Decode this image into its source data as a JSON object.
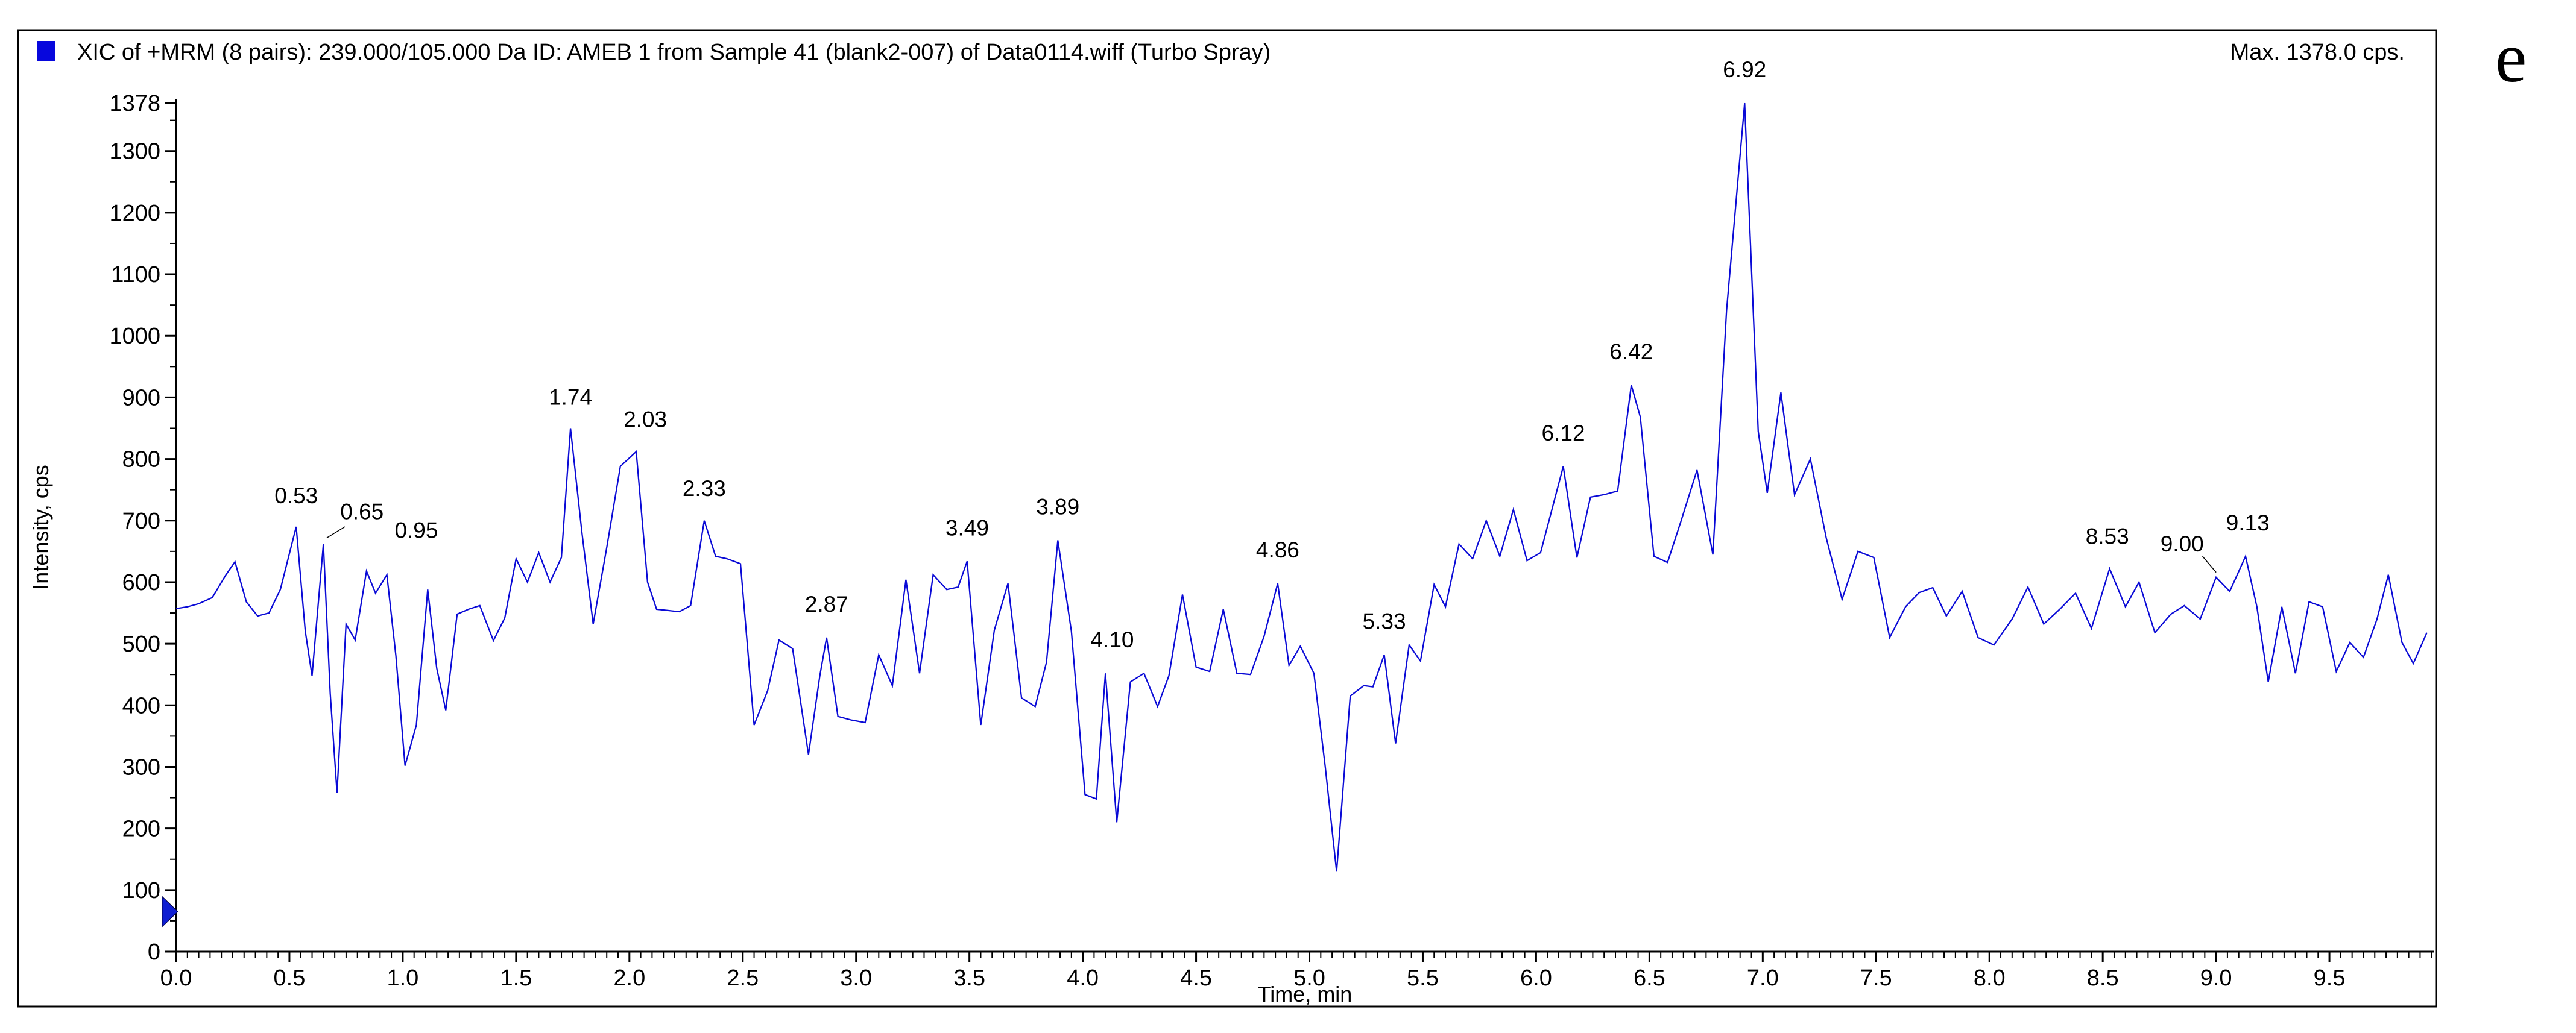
{
  "page": {
    "background": "#ffffff"
  },
  "figure_label": "e",
  "header": {
    "title": "XIC of +MRM (8 pairs): 239.000/105.000 Da ID: AMEB 1 from Sample 41 (blank2-007) of Data0114.wiff (Turbo Spray)",
    "max_label": "Max. 1378.0 cps."
  },
  "legend": {
    "swatch_color": "#0707dd"
  },
  "marker": {
    "name": "file-pointer-triangle",
    "color": "#0f1ed2",
    "cps": 65
  },
  "chart_data": {
    "type": "line",
    "title": "XIC of +MRM (8 pairs): 239.000/105.000 Da ID: AMEB 1 from Sample 41 (blank2-007) of Data0114.wiff (Turbo Spray)",
    "xlabel": "Time, min",
    "ylabel": "Intensity, cps",
    "xlim": [
      0,
      9.96
    ],
    "ylim": [
      0,
      1378
    ],
    "grid": false,
    "legend_position": "top-left",
    "line_color": "#0a0ad6",
    "axis_color": "#000000",
    "x_tick_labels": [
      "0.0",
      "0.5",
      "1.0",
      "1.5",
      "2.0",
      "2.5",
      "3.0",
      "3.5",
      "4.0",
      "4.5",
      "5.0",
      "5.5",
      "6.0",
      "6.5",
      "7.0",
      "7.5",
      "8.0",
      "8.5",
      "9.0",
      "9.5"
    ],
    "x_minor_step": 0.05,
    "y_tick_labels": [
      "1378",
      "1300",
      "1200",
      "1100",
      "1000",
      "900",
      "800",
      "700",
      "600",
      "500",
      "400",
      "300",
      "200",
      "100",
      "0"
    ],
    "y_minor_step": 50,
    "max_cps": 1378.0,
    "series": [
      {
        "name": "XIC 239.000/105.000",
        "points": [
          [
            0.0,
            557
          ],
          [
            0.05,
            560
          ],
          [
            0.1,
            565
          ],
          [
            0.16,
            575
          ],
          [
            0.22,
            612
          ],
          [
            0.26,
            633
          ],
          [
            0.31,
            568
          ],
          [
            0.36,
            545
          ],
          [
            0.41,
            550
          ],
          [
            0.46,
            588
          ],
          [
            0.53,
            690
          ],
          [
            0.57,
            520
          ],
          [
            0.6,
            448
          ],
          [
            0.65,
            662
          ],
          [
            0.68,
            420
          ],
          [
            0.71,
            258
          ],
          [
            0.75,
            532
          ],
          [
            0.79,
            506
          ],
          [
            0.84,
            618
          ],
          [
            0.88,
            582
          ],
          [
            0.93,
            612
          ],
          [
            0.97,
            480
          ],
          [
            1.01,
            302
          ],
          [
            1.06,
            368
          ],
          [
            1.11,
            588
          ],
          [
            1.15,
            460
          ],
          [
            1.19,
            392
          ],
          [
            1.24,
            548
          ],
          [
            1.29,
            556
          ],
          [
            1.34,
            562
          ],
          [
            1.4,
            505
          ],
          [
            1.45,
            542
          ],
          [
            1.5,
            638
          ],
          [
            1.55,
            600
          ],
          [
            1.6,
            648
          ],
          [
            1.65,
            600
          ],
          [
            1.7,
            640
          ],
          [
            1.74,
            850
          ],
          [
            1.79,
            682
          ],
          [
            1.84,
            532
          ],
          [
            1.9,
            656
          ],
          [
            1.96,
            788
          ],
          [
            2.03,
            812
          ],
          [
            2.08,
            600
          ],
          [
            2.12,
            556
          ],
          [
            2.17,
            554
          ],
          [
            2.22,
            552
          ],
          [
            2.27,
            562
          ],
          [
            2.33,
            700
          ],
          [
            2.38,
            642
          ],
          [
            2.43,
            638
          ],
          [
            2.49,
            630
          ],
          [
            2.55,
            368
          ],
          [
            2.61,
            424
          ],
          [
            2.66,
            506
          ],
          [
            2.72,
            492
          ],
          [
            2.79,
            320
          ],
          [
            2.84,
            448
          ],
          [
            2.87,
            510
          ],
          [
            2.92,
            382
          ],
          [
            2.98,
            376
          ],
          [
            3.04,
            372
          ],
          [
            3.1,
            482
          ],
          [
            3.16,
            432
          ],
          [
            3.22,
            604
          ],
          [
            3.28,
            452
          ],
          [
            3.34,
            612
          ],
          [
            3.4,
            588
          ],
          [
            3.45,
            592
          ],
          [
            3.49,
            634
          ],
          [
            3.55,
            368
          ],
          [
            3.61,
            522
          ],
          [
            3.67,
            598
          ],
          [
            3.73,
            412
          ],
          [
            3.79,
            398
          ],
          [
            3.84,
            470
          ],
          [
            3.89,
            668
          ],
          [
            3.95,
            520
          ],
          [
            4.01,
            255
          ],
          [
            4.06,
            248
          ],
          [
            4.1,
            452
          ],
          [
            4.15,
            210
          ],
          [
            4.21,
            438
          ],
          [
            4.27,
            452
          ],
          [
            4.33,
            398
          ],
          [
            4.38,
            448
          ],
          [
            4.44,
            580
          ],
          [
            4.5,
            462
          ],
          [
            4.56,
            455
          ],
          [
            4.62,
            556
          ],
          [
            4.68,
            452
          ],
          [
            4.74,
            450
          ],
          [
            4.8,
            512
          ],
          [
            4.86,
            598
          ],
          [
            4.91,
            465
          ],
          [
            4.96,
            496
          ],
          [
            5.02,
            452
          ],
          [
            5.07,
            300
          ],
          [
            5.12,
            130
          ],
          [
            5.18,
            415
          ],
          [
            5.24,
            432
          ],
          [
            5.28,
            430
          ],
          [
            5.33,
            482
          ],
          [
            5.38,
            338
          ],
          [
            5.44,
            498
          ],
          [
            5.49,
            472
          ],
          [
            5.55,
            596
          ],
          [
            5.6,
            560
          ],
          [
            5.66,
            662
          ],
          [
            5.72,
            638
          ],
          [
            5.78,
            700
          ],
          [
            5.84,
            642
          ],
          [
            5.9,
            718
          ],
          [
            5.96,
            635
          ],
          [
            6.02,
            648
          ],
          [
            6.12,
            788
          ],
          [
            6.18,
            640
          ],
          [
            6.24,
            738
          ],
          [
            6.3,
            742
          ],
          [
            6.36,
            748
          ],
          [
            6.42,
            920
          ],
          [
            6.46,
            868
          ],
          [
            6.52,
            642
          ],
          [
            6.58,
            632
          ],
          [
            6.64,
            700
          ],
          [
            6.71,
            782
          ],
          [
            6.78,
            645
          ],
          [
            6.84,
            1040
          ],
          [
            6.92,
            1378
          ],
          [
            6.98,
            845
          ],
          [
            7.02,
            745
          ],
          [
            7.08,
            908
          ],
          [
            7.14,
            742
          ],
          [
            7.21,
            800
          ],
          [
            7.28,
            672
          ],
          [
            7.35,
            572
          ],
          [
            7.42,
            650
          ],
          [
            7.49,
            640
          ],
          [
            7.56,
            510
          ],
          [
            7.63,
            560
          ],
          [
            7.69,
            583
          ],
          [
            7.75,
            591
          ],
          [
            7.81,
            545
          ],
          [
            7.88,
            585
          ],
          [
            7.95,
            510
          ],
          [
            8.02,
            498
          ],
          [
            8.1,
            540
          ],
          [
            8.17,
            592
          ],
          [
            8.24,
            532
          ],
          [
            8.31,
            556
          ],
          [
            8.38,
            582
          ],
          [
            8.45,
            525
          ],
          [
            8.53,
            622
          ],
          [
            8.6,
            560
          ],
          [
            8.66,
            600
          ],
          [
            8.73,
            518
          ],
          [
            8.8,
            548
          ],
          [
            8.86,
            562
          ],
          [
            8.93,
            540
          ],
          [
            9.0,
            608
          ],
          [
            9.06,
            585
          ],
          [
            9.13,
            642
          ],
          [
            9.18,
            560
          ],
          [
            9.23,
            438
          ],
          [
            9.29,
            560
          ],
          [
            9.35,
            452
          ],
          [
            9.41,
            568
          ],
          [
            9.47,
            560
          ],
          [
            9.53,
            455
          ],
          [
            9.59,
            502
          ],
          [
            9.65,
            478
          ],
          [
            9.71,
            540
          ],
          [
            9.76,
            612
          ],
          [
            9.82,
            502
          ],
          [
            9.87,
            468
          ],
          [
            9.93,
            518
          ]
        ]
      }
    ],
    "peak_labels": [
      {
        "text": "0.53",
        "t": 0.53,
        "cps": 728,
        "leader": null
      },
      {
        "text": "0.65",
        "t": 0.82,
        "cps": 702,
        "leader": [
          [
            0.665,
            672
          ],
          [
            0.745,
            690
          ]
        ]
      },
      {
        "text": "0.95",
        "t": 1.06,
        "cps": 672,
        "leader": null
      },
      {
        "text": "1.74",
        "t": 1.74,
        "cps": 888,
        "leader": null
      },
      {
        "text": "2.03",
        "t": 2.07,
        "cps": 852,
        "leader": null
      },
      {
        "text": "2.33",
        "t": 2.33,
        "cps": 740,
        "leader": null
      },
      {
        "text": "2.87",
        "t": 2.87,
        "cps": 552,
        "leader": null
      },
      {
        "text": "3.49",
        "t": 3.49,
        "cps": 676,
        "leader": null
      },
      {
        "text": "3.89",
        "t": 3.89,
        "cps": 710,
        "leader": null
      },
      {
        "text": "4.10",
        "t": 4.13,
        "cps": 494,
        "leader": null
      },
      {
        "text": "4.86",
        "t": 4.86,
        "cps": 640,
        "leader": null
      },
      {
        "text": "5.33",
        "t": 5.33,
        "cps": 524,
        "leader": null
      },
      {
        "text": "6.12",
        "t": 6.12,
        "cps": 830,
        "leader": null
      },
      {
        "text": "6.42",
        "t": 6.42,
        "cps": 962,
        "leader": null
      },
      {
        "text": "6.92",
        "t": 6.92,
        "cps": 1420,
        "leader": null
      },
      {
        "text": "8.53",
        "t": 8.52,
        "cps": 662,
        "leader": null
      },
      {
        "text": "9.00",
        "t": 8.85,
        "cps": 650,
        "leader": [
          [
            8.94,
            642
          ],
          [
            9.0,
            616
          ]
        ]
      },
      {
        "text": "9.13",
        "t": 9.14,
        "cps": 684,
        "leader": null
      }
    ]
  }
}
